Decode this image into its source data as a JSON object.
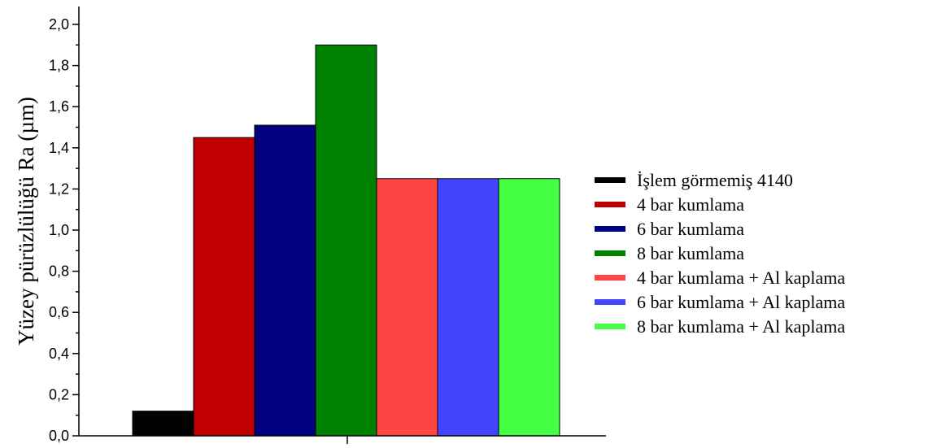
{
  "chart_data": {
    "type": "bar",
    "title": "",
    "xlabel": "",
    "ylabel": "Yüzey pürüzlülüğü Ra (µm)",
    "ylim": [
      0,
      2.0
    ],
    "yticks": [
      "0,0",
      "0,2",
      "0,4",
      "0,6",
      "0,8",
      "1,0",
      "1,2",
      "1,4",
      "1,6",
      "1,8",
      "2,0"
    ],
    "grid": false,
    "legend_position": "right",
    "series": [
      {
        "name": "İşlem görmemiş 4140",
        "value": 0.12,
        "color": "#000000"
      },
      {
        "name": "4 bar kumlama",
        "value": 1.45,
        "color": "#c00000"
      },
      {
        "name": "6 bar kumlama",
        "value": 1.51,
        "color": "#000080"
      },
      {
        "name": "8 bar kumlama",
        "value": 1.9,
        "color": "#008000"
      },
      {
        "name": "4 bar kumlama + Al kaplama",
        "value": 1.25,
        "color": "#ff4444"
      },
      {
        "name": "6 bar kumlama + Al kaplama",
        "value": 1.25,
        "color": "#4444ff"
      },
      {
        "name": "8 bar kumlama + Al kaplama",
        "value": 1.25,
        "color": "#44ff44"
      }
    ]
  }
}
